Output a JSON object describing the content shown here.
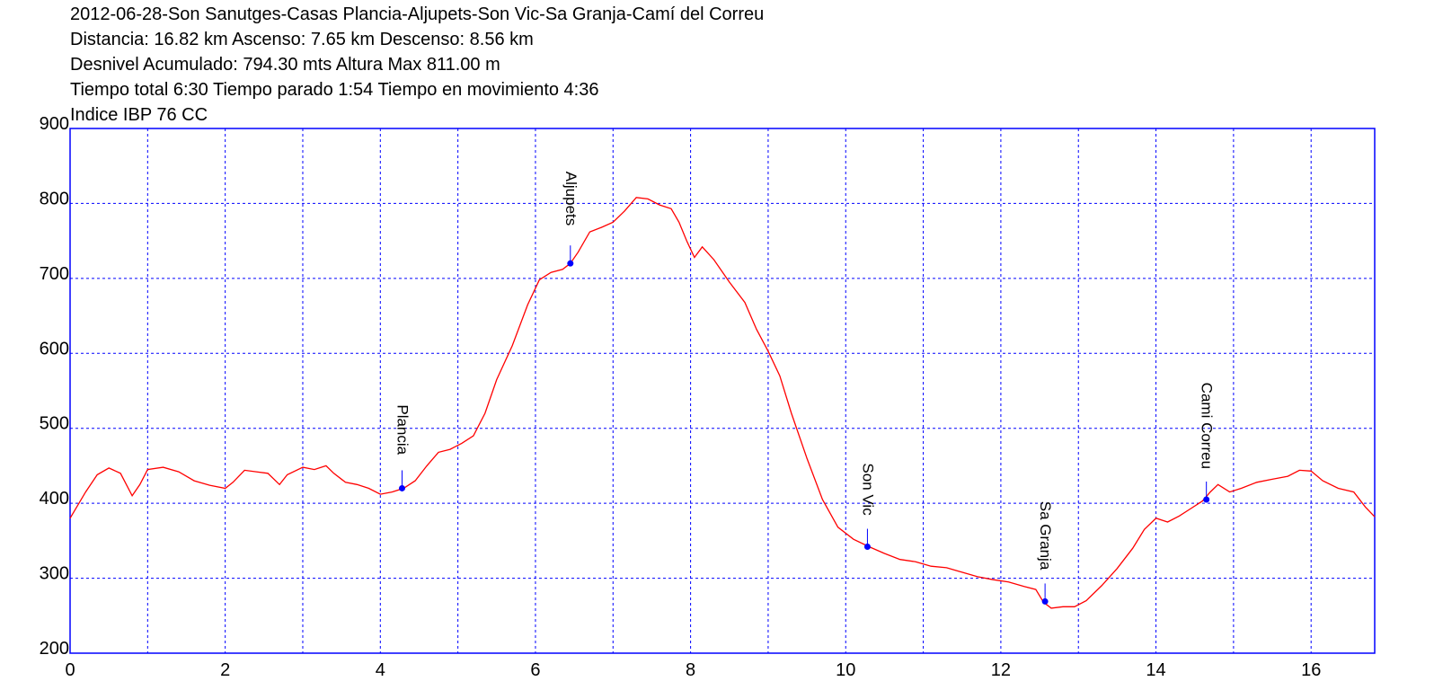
{
  "header": {
    "title": "2012-06-28-Son Sanutges-Casas Plancia-Aljupets-Son Vic-Sa Granja-Camí del Correu",
    "line2": "Distancia: 16.82 km Ascenso: 7.65 km Descenso: 8.56 km",
    "line3": "Desnivel Acumulado: 794.30 mts  Altura Max 811.00 m",
    "line4": "Tiempo total 6:30 Tiempo parado 1:54 Tiempo en movimiento 4:36",
    "line5": "Indice IBP 76 CC"
  },
  "chart_data": {
    "type": "line",
    "xlim": [
      0,
      16.82
    ],
    "ylim": [
      200,
      900
    ],
    "x_ticks": [
      0,
      2,
      4,
      6,
      8,
      10,
      12,
      14,
      16
    ],
    "y_ticks": [
      200,
      300,
      400,
      500,
      600,
      700,
      800,
      900
    ],
    "x_grid_step": 1,
    "y_grid_step": 100,
    "grid": true,
    "colors": {
      "line": "#ff0000",
      "grid": "#0000ff",
      "frame": "#0000ff",
      "waypoint": "#0000ff"
    },
    "series": [
      {
        "points": [
          [
            0,
            380
          ],
          [
            0.2,
            415
          ],
          [
            0.35,
            438
          ],
          [
            0.5,
            447
          ],
          [
            0.65,
            440
          ],
          [
            0.8,
            410
          ],
          [
            0.9,
            425
          ],
          [
            1.0,
            445
          ],
          [
            1.2,
            448
          ],
          [
            1.4,
            442
          ],
          [
            1.6,
            430
          ],
          [
            1.8,
            424
          ],
          [
            2.0,
            420
          ],
          [
            2.1,
            428
          ],
          [
            2.25,
            444
          ],
          [
            2.4,
            442
          ],
          [
            2.55,
            440
          ],
          [
            2.7,
            425
          ],
          [
            2.8,
            438
          ],
          [
            3.0,
            448
          ],
          [
            3.15,
            445
          ],
          [
            3.3,
            450
          ],
          [
            3.4,
            440
          ],
          [
            3.55,
            428
          ],
          [
            3.7,
            425
          ],
          [
            3.85,
            420
          ],
          [
            4.0,
            412
          ],
          [
            4.15,
            415
          ],
          [
            4.3,
            420
          ],
          [
            4.45,
            430
          ],
          [
            4.6,
            450
          ],
          [
            4.75,
            468
          ],
          [
            4.9,
            472
          ],
          [
            5.05,
            480
          ],
          [
            5.2,
            490
          ],
          [
            5.35,
            520
          ],
          [
            5.5,
            565
          ],
          [
            5.7,
            610
          ],
          [
            5.9,
            665
          ],
          [
            6.05,
            698
          ],
          [
            6.2,
            708
          ],
          [
            6.35,
            712
          ],
          [
            6.45,
            720
          ],
          [
            6.55,
            735
          ],
          [
            6.7,
            762
          ],
          [
            6.85,
            768
          ],
          [
            7.0,
            775
          ],
          [
            7.15,
            790
          ],
          [
            7.3,
            808
          ],
          [
            7.45,
            806
          ],
          [
            7.6,
            798
          ],
          [
            7.75,
            793
          ],
          [
            7.85,
            775
          ],
          [
            7.95,
            750
          ],
          [
            8.05,
            728
          ],
          [
            8.15,
            742
          ],
          [
            8.3,
            725
          ],
          [
            8.5,
            695
          ],
          [
            8.7,
            668
          ],
          [
            8.85,
            632
          ],
          [
            9.0,
            603
          ],
          [
            9.15,
            570
          ],
          [
            9.3,
            520
          ],
          [
            9.5,
            460
          ],
          [
            9.7,
            405
          ],
          [
            9.9,
            368
          ],
          [
            10.1,
            352
          ],
          [
            10.3,
            342
          ],
          [
            10.5,
            333
          ],
          [
            10.7,
            325
          ],
          [
            10.9,
            322
          ],
          [
            11.1,
            316
          ],
          [
            11.3,
            314
          ],
          [
            11.5,
            308
          ],
          [
            11.7,
            302
          ],
          [
            11.9,
            298
          ],
          [
            12.1,
            295
          ],
          [
            12.3,
            289
          ],
          [
            12.45,
            285
          ],
          [
            12.55,
            268
          ],
          [
            12.65,
            260
          ],
          [
            12.8,
            262
          ],
          [
            12.95,
            262
          ],
          [
            13.1,
            270
          ],
          [
            13.3,
            290
          ],
          [
            13.5,
            313
          ],
          [
            13.7,
            340
          ],
          [
            13.85,
            365
          ],
          [
            14.0,
            380
          ],
          [
            14.15,
            375
          ],
          [
            14.3,
            383
          ],
          [
            14.45,
            393
          ],
          [
            14.6,
            403
          ],
          [
            14.7,
            415
          ],
          [
            14.8,
            425
          ],
          [
            14.95,
            415
          ],
          [
            15.1,
            420
          ],
          [
            15.3,
            428
          ],
          [
            15.5,
            432
          ],
          [
            15.7,
            436
          ],
          [
            15.85,
            444
          ],
          [
            16.0,
            443
          ],
          [
            16.15,
            430
          ],
          [
            16.35,
            420
          ],
          [
            16.55,
            415
          ],
          [
            16.7,
            395
          ],
          [
            16.82,
            382
          ]
        ]
      }
    ],
    "waypoints": [
      {
        "name": "Plancia",
        "x": 4.28,
        "y": 420
      },
      {
        "name": "Aljupets",
        "x": 6.45,
        "y": 720
      },
      {
        "name": "Son Vic",
        "x": 10.28,
        "y": 342
      },
      {
        "name": "Sa Granja",
        "x": 12.57,
        "y": 269
      },
      {
        "name": "Cami Correu",
        "x": 14.65,
        "y": 405
      }
    ]
  }
}
